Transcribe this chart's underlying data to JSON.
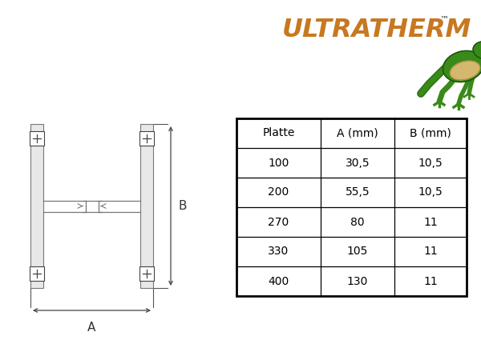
{
  "background_color": "#ffffff",
  "title_text": "ULTRATHERM",
  "tm_text": "™",
  "table_headers": [
    "Platte",
    "A (mm)",
    "B (mm)"
  ],
  "table_data": [
    [
      "100",
      "30,5",
      "10,5"
    ],
    [
      "200",
      "55,5",
      "10,5"
    ],
    [
      "270",
      "80",
      "11"
    ],
    [
      "330",
      "105",
      "11"
    ],
    [
      "400",
      "130",
      "11"
    ]
  ],
  "diagram_line_color": "#777777",
  "label_A": "A",
  "label_B": "B",
  "bar_fill": "#e8e8e8",
  "bar_edge": "#777777"
}
